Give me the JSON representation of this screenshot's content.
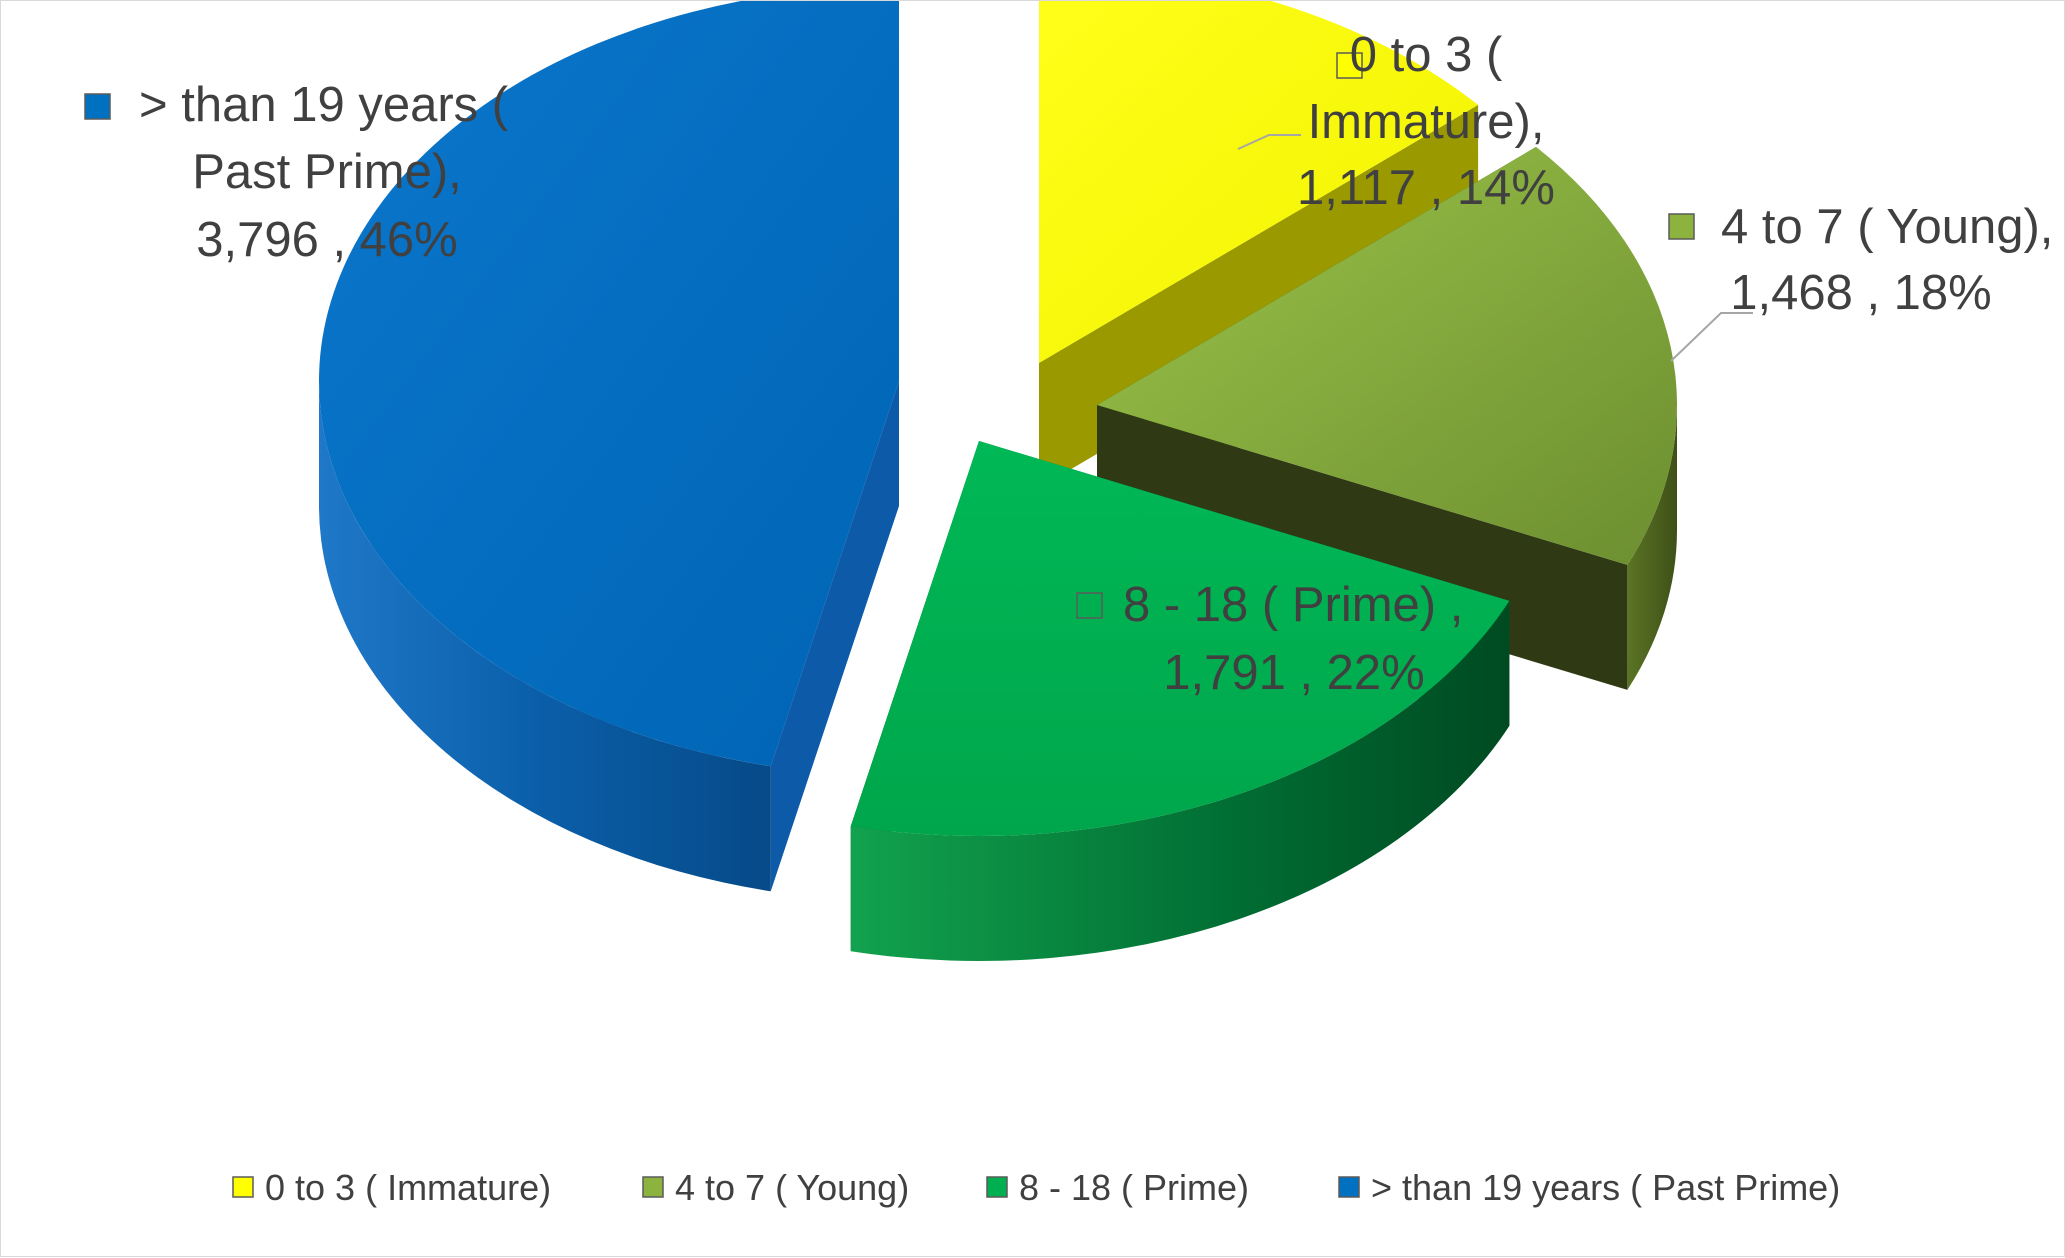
{
  "chart_data": {
    "type": "pie",
    "variant": "3d-exploded",
    "title": "",
    "categories": [
      "0 to 3 ( Immature)",
      "4 to 7 ( Young)",
      "8 - 18 ( Prime)",
      "> than 19 years ( Past Prime)"
    ],
    "values": [
      1117,
      1468,
      1791,
      3796
    ],
    "percentages": [
      "14%",
      "18%",
      "22%",
      "46%"
    ],
    "data_labels": [
      [
        "0 to 3 (",
        "Immature),",
        "1,117 , 14%"
      ],
      [
        "4 to 7 ( Young),",
        "1,468 , 18%"
      ],
      [
        "8 - 18 ( Prime) ,",
        "1,791 , 22%"
      ],
      [
        "> than 19 years (",
        "Past Prime),",
        "3,796 , 46%"
      ]
    ],
    "colors": [
      "#ffff00",
      "#8db33f",
      "#00b050",
      "#0070c0"
    ],
    "legend_position": "bottom"
  }
}
